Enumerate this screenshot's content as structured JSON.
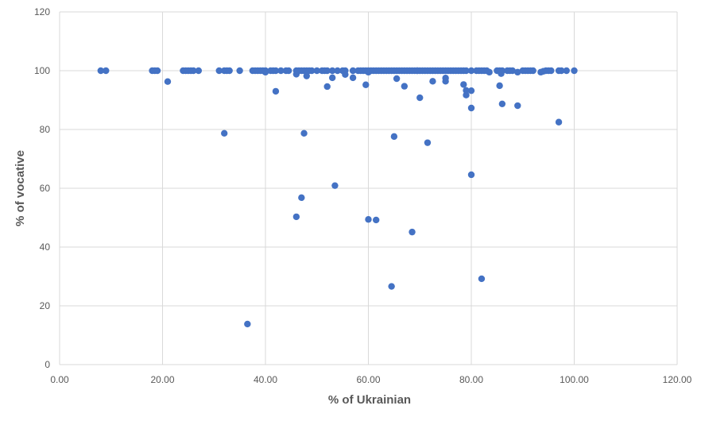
{
  "chart_data": {
    "type": "scatter",
    "title": "",
    "xlabel": "% of Ukrainian",
    "ylabel": "% of vocative",
    "xlim": [
      0,
      120
    ],
    "ylim": [
      0,
      120
    ],
    "x_ticks": [
      "0.00",
      "20.00",
      "40.00",
      "60.00",
      "80.00",
      "100.00",
      "120.00"
    ],
    "y_ticks": [
      "0",
      "20",
      "40",
      "60",
      "80",
      "100",
      "120"
    ],
    "x_tick_values": [
      0,
      20,
      40,
      60,
      80,
      100,
      120
    ],
    "y_tick_values": [
      0,
      20,
      40,
      60,
      80,
      100,
      120
    ],
    "grid": true,
    "marker_color": "#4472C4",
    "series": [
      {
        "points": [
          [
            8,
            100
          ],
          [
            9,
            100
          ],
          [
            18,
            100
          ],
          [
            18.5,
            100
          ],
          [
            19,
            100
          ],
          [
            21,
            96.3
          ],
          [
            24,
            100
          ],
          [
            24.5,
            100
          ],
          [
            25,
            100
          ],
          [
            25.5,
            100
          ],
          [
            26,
            100
          ],
          [
            27,
            100
          ],
          [
            31,
            100
          ],
          [
            32,
            100
          ],
          [
            32.5,
            100
          ],
          [
            33,
            100
          ],
          [
            35,
            100
          ],
          [
            37.5,
            100
          ],
          [
            38,
            100
          ],
          [
            38.5,
            100
          ],
          [
            39,
            100
          ],
          [
            39.5,
            100
          ],
          [
            40,
            100
          ],
          [
            41,
            100
          ],
          [
            41.5,
            100
          ],
          [
            42,
            100
          ],
          [
            43,
            100
          ],
          [
            44,
            100
          ],
          [
            44.5,
            100
          ],
          [
            46,
            100
          ],
          [
            46.5,
            100
          ],
          [
            47,
            100
          ],
          [
            47.5,
            100
          ],
          [
            48,
            100
          ],
          [
            48.5,
            100
          ],
          [
            49,
            100
          ],
          [
            50,
            100
          ],
          [
            51,
            100
          ],
          [
            51.5,
            100
          ],
          [
            52,
            100
          ],
          [
            53,
            100
          ],
          [
            54,
            100
          ],
          [
            55,
            100
          ],
          [
            55.5,
            100
          ],
          [
            57,
            100
          ],
          [
            58,
            100
          ],
          [
            58.5,
            100
          ],
          [
            59,
            100
          ],
          [
            59.5,
            100
          ],
          [
            60,
            100
          ],
          [
            60.5,
            100
          ],
          [
            61,
            100
          ],
          [
            61.5,
            100
          ],
          [
            62,
            100
          ],
          [
            62.5,
            100
          ],
          [
            63,
            100
          ],
          [
            63.5,
            100
          ],
          [
            64,
            100
          ],
          [
            64.5,
            100
          ],
          [
            65,
            100
          ],
          [
            65.5,
            100
          ],
          [
            66,
            100
          ],
          [
            66.5,
            100
          ],
          [
            67,
            100
          ],
          [
            67.5,
            100
          ],
          [
            68,
            100
          ],
          [
            68.5,
            100
          ],
          [
            69,
            100
          ],
          [
            69.5,
            100
          ],
          [
            70,
            100
          ],
          [
            70.5,
            100
          ],
          [
            71,
            100
          ],
          [
            71.5,
            100
          ],
          [
            72,
            100
          ],
          [
            72.5,
            100
          ],
          [
            73,
            100
          ],
          [
            73.5,
            100
          ],
          [
            74,
            100
          ],
          [
            74.5,
            100
          ],
          [
            75,
            100
          ],
          [
            75.5,
            100
          ],
          [
            76,
            100
          ],
          [
            76.5,
            100
          ],
          [
            77,
            100
          ],
          [
            77.5,
            100
          ],
          [
            78,
            100
          ],
          [
            78.5,
            100
          ],
          [
            79,
            100
          ],
          [
            80,
            100
          ],
          [
            81,
            100
          ],
          [
            81.5,
            100
          ],
          [
            82,
            100
          ],
          [
            82.5,
            100
          ],
          [
            83,
            100
          ],
          [
            83.5,
            99.5
          ],
          [
            85,
            100
          ],
          [
            85.5,
            100
          ],
          [
            86,
            100
          ],
          [
            87,
            100
          ],
          [
            87.5,
            100
          ],
          [
            88,
            100
          ],
          [
            89,
            99.5
          ],
          [
            90,
            100
          ],
          [
            90.5,
            100
          ],
          [
            91,
            100
          ],
          [
            91.5,
            100
          ],
          [
            92,
            100
          ],
          [
            93.5,
            99.5
          ],
          [
            94,
            99.8
          ],
          [
            94.5,
            100
          ],
          [
            95,
            100
          ],
          [
            95.5,
            100
          ],
          [
            97,
            100
          ],
          [
            97.5,
            100
          ],
          [
            98.5,
            100
          ],
          [
            100,
            100
          ],
          [
            40,
            99.5
          ],
          [
            46,
            98.8
          ],
          [
            48,
            98.2
          ],
          [
            53,
            97.6
          ],
          [
            55.5,
            98.7
          ],
          [
            57,
            97.6
          ],
          [
            59.5,
            95.2
          ],
          [
            60,
            99.5
          ],
          [
            65.5,
            97.3
          ],
          [
            67,
            94.7
          ],
          [
            69.5,
            100
          ],
          [
            75,
            97.5
          ],
          [
            75,
            96.4
          ],
          [
            72.5,
            96.4
          ],
          [
            78.5,
            95.3
          ],
          [
            79,
            93.3
          ],
          [
            79,
            91.7
          ],
          [
            80,
            93.2
          ],
          [
            80,
            87.3
          ],
          [
            86,
            88.7
          ],
          [
            89,
            88.1
          ],
          [
            85.5,
            94.9
          ],
          [
            85.8,
            99
          ],
          [
            70,
            90.8
          ],
          [
            52,
            94.6
          ],
          [
            42,
            93
          ],
          [
            32,
            78.7
          ],
          [
            47.5,
            78.7
          ],
          [
            65,
            77.6
          ],
          [
            71.5,
            75.5
          ],
          [
            97,
            82.5
          ],
          [
            80,
            64.6
          ],
          [
            53.5,
            60.9
          ],
          [
            47,
            56.8
          ],
          [
            46,
            50.3
          ],
          [
            60,
            49.4
          ],
          [
            61.5,
            49.2
          ],
          [
            68.5,
            45.1
          ],
          [
            64.5,
            26.6
          ],
          [
            82,
            29.2
          ],
          [
            36.5,
            13.8
          ]
        ]
      }
    ]
  }
}
